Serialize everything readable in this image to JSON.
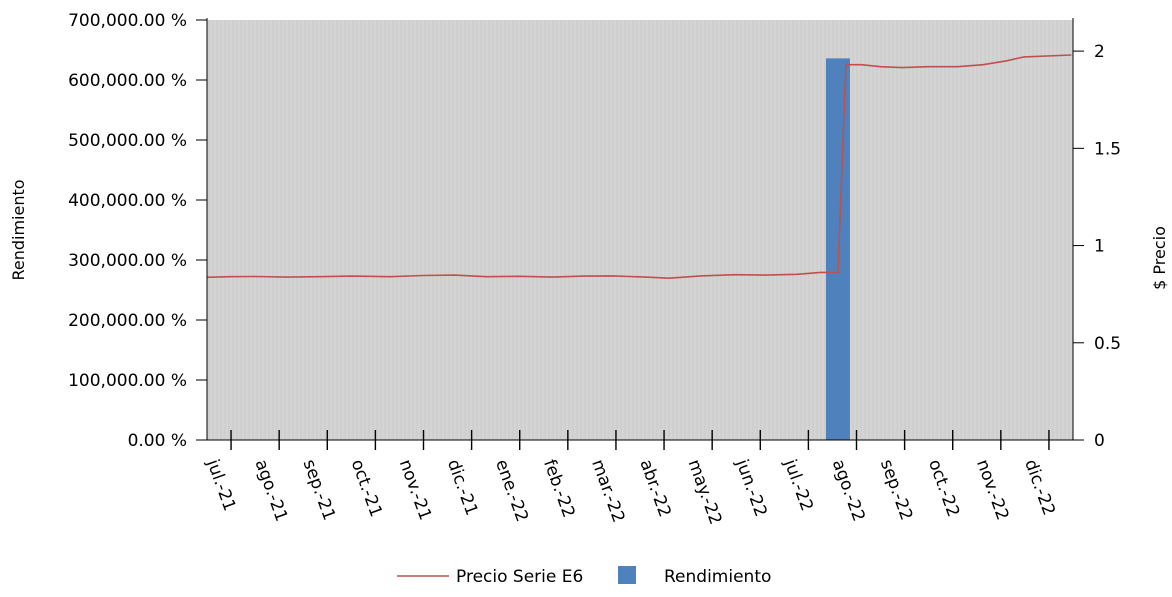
{
  "chart_data": {
    "type": "bar",
    "x_months": [
      "jul.-21",
      "ago.-21",
      "sep.-21",
      "oct.-21",
      "nov.-21",
      "dic.-21",
      "ene.-22",
      "feb.-22",
      "mar.-22",
      "abr.-22",
      "may.-22",
      "jun.-22",
      "jul.-22",
      "ago.-22",
      "sep.-22",
      "oct.-22",
      "nov.-22",
      "dic.-22"
    ],
    "y_left": {
      "label": "Rendimiento",
      "range": [
        0,
        700000
      ],
      "ticks": [
        "0.00 %",
        "100,000.00 %",
        "200,000.00 %",
        "300,000.00 %",
        "400,000.00 %",
        "500,000.00 %",
        "600,000.00 %",
        "700,000.00 %"
      ]
    },
    "y_right": {
      "label": "$ Precio",
      "range": [
        0,
        2.16
      ],
      "ticks": [
        "0",
        "0.5",
        "1",
        "1.5",
        "2"
      ]
    },
    "series": [
      {
        "name": "Precio Serie E6",
        "kind": "line",
        "axis": "right",
        "color": "#c0504d",
        "points": [
          [
            "2021-07-01",
            0.837
          ],
          [
            "2021-07-15",
            0.84
          ],
          [
            "2021-08-01",
            0.841
          ],
          [
            "2021-08-20",
            0.838
          ],
          [
            "2021-09-10",
            0.84
          ],
          [
            "2021-10-01",
            0.843
          ],
          [
            "2021-10-25",
            0.84
          ],
          [
            "2021-11-15",
            0.846
          ],
          [
            "2021-12-05",
            0.848
          ],
          [
            "2021-12-25",
            0.84
          ],
          [
            "2022-01-15",
            0.842
          ],
          [
            "2022-02-05",
            0.838
          ],
          [
            "2022-02-25",
            0.843
          ],
          [
            "2022-03-15",
            0.844
          ],
          [
            "2022-04-05",
            0.838
          ],
          [
            "2022-04-20",
            0.832
          ],
          [
            "2022-05-10",
            0.844
          ],
          [
            "2022-06-01",
            0.85
          ],
          [
            "2022-06-20",
            0.848
          ],
          [
            "2022-07-10",
            0.852
          ],
          [
            "2022-07-25",
            0.862
          ],
          [
            "2022-08-05",
            0.862
          ],
          [
            "2022-08-10",
            1.93
          ],
          [
            "2022-08-20",
            1.93
          ],
          [
            "2022-09-01",
            1.92
          ],
          [
            "2022-09-15",
            1.915
          ],
          [
            "2022-10-01",
            1.92
          ],
          [
            "2022-10-20",
            1.92
          ],
          [
            "2022-11-05",
            1.93
          ],
          [
            "2022-11-20",
            1.95
          ],
          [
            "2022-12-01",
            1.97
          ],
          [
            "2022-12-31",
            1.98
          ]
        ]
      },
      {
        "name": "Rendimiento",
        "kind": "bar",
        "axis": "left",
        "color": "#4f81bd",
        "points": [
          [
            "2022-08-05",
            636000
          ]
        ]
      }
    ],
    "grid": false,
    "plot_background": "#d4d4d4",
    "legend_position": "bottom"
  }
}
